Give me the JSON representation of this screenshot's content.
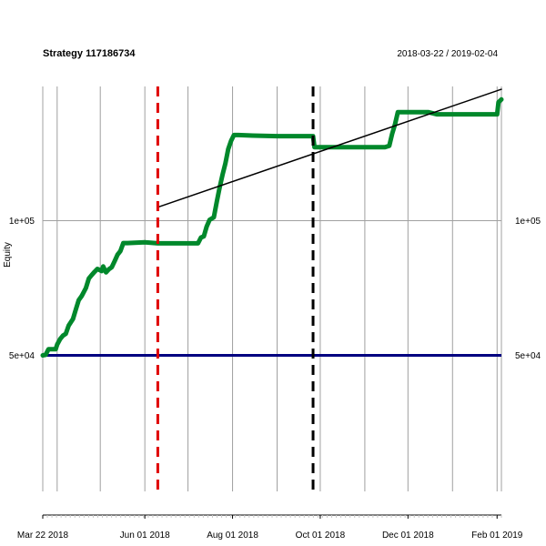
{
  "chart_data": {
    "type": "line",
    "title": "Strategy 117186734",
    "date_range": "2018-03-22 / 2019-02-04",
    "ylabel": "Equity",
    "x_start": "2018-03-22",
    "x_end": "2019-02-04",
    "ylim": [
      0,
      150000
    ],
    "y_ticks": [
      {
        "value": 50000,
        "label": "5e+04"
      },
      {
        "value": 100000,
        "label": "1e+05"
      }
    ],
    "x_ticks": [
      {
        "date": "2018-03-22",
        "label": "Mar 22 2018"
      },
      {
        "date": "2018-06-01",
        "label": "Jun 01 2018"
      },
      {
        "date": "2018-08-01",
        "label": "Aug 01 2018"
      },
      {
        "date": "2018-10-01",
        "label": "Oct 01 2018"
      },
      {
        "date": "2018-12-01",
        "label": "Dec 01 2018"
      },
      {
        "date": "2019-02-01",
        "label": "Feb 01 2019"
      }
    ],
    "grid_dates": [
      "2018-04-01",
      "2018-05-01",
      "2018-06-01",
      "2018-07-01",
      "2018-08-01",
      "2018-09-01",
      "2018-10-01",
      "2018-11-01",
      "2018-12-01",
      "2019-01-01",
      "2019-02-01"
    ],
    "series": [
      {
        "role": "equity",
        "color": "#00882B",
        "points": [
          [
            "2018-03-22",
            50000
          ],
          [
            "2018-03-24",
            50200
          ],
          [
            "2018-03-26",
            52300
          ],
          [
            "2018-03-31",
            52300
          ],
          [
            "2018-04-01",
            54000
          ],
          [
            "2018-04-03",
            56000
          ],
          [
            "2018-04-05",
            57300
          ],
          [
            "2018-04-07",
            58000
          ],
          [
            "2018-04-09",
            61000
          ],
          [
            "2018-04-12",
            63500
          ],
          [
            "2018-04-14",
            67000
          ],
          [
            "2018-04-16",
            70500
          ],
          [
            "2018-04-18",
            72000
          ],
          [
            "2018-04-21",
            75000
          ],
          [
            "2018-04-23",
            78500
          ],
          [
            "2018-04-25",
            79800
          ],
          [
            "2018-04-27",
            81000
          ],
          [
            "2018-04-29",
            82100
          ],
          [
            "2018-05-02",
            81300
          ],
          [
            "2018-05-03",
            83000
          ],
          [
            "2018-05-05",
            80800
          ],
          [
            "2018-05-07",
            82000
          ],
          [
            "2018-05-09",
            82700
          ],
          [
            "2018-05-11",
            85000
          ],
          [
            "2018-05-13",
            87400
          ],
          [
            "2018-05-15",
            88700
          ],
          [
            "2018-05-17",
            91700
          ],
          [
            "2018-05-20",
            91700
          ],
          [
            "2018-05-25",
            91800
          ],
          [
            "2018-06-01",
            92000
          ],
          [
            "2018-06-10",
            91600
          ],
          [
            "2018-06-20",
            91600
          ],
          [
            "2018-07-01",
            91600
          ],
          [
            "2018-07-08",
            91600
          ],
          [
            "2018-07-10",
            93700
          ],
          [
            "2018-07-12",
            94200
          ],
          [
            "2018-07-14",
            97800
          ],
          [
            "2018-07-16",
            100300
          ],
          [
            "2018-07-19",
            101300
          ],
          [
            "2018-07-21",
            107000
          ],
          [
            "2018-07-23",
            112200
          ],
          [
            "2018-07-25",
            117000
          ],
          [
            "2018-07-27",
            121300
          ],
          [
            "2018-07-29",
            126600
          ],
          [
            "2018-07-31",
            129700
          ],
          [
            "2018-08-02",
            131800
          ],
          [
            "2018-08-05",
            131800
          ],
          [
            "2018-08-15",
            131600
          ],
          [
            "2018-09-01",
            131400
          ],
          [
            "2018-09-20",
            131400
          ],
          [
            "2018-09-26",
            131400
          ],
          [
            "2018-09-27",
            127300
          ],
          [
            "2018-10-05",
            127300
          ],
          [
            "2018-11-01",
            127300
          ],
          [
            "2018-11-15",
            127300
          ],
          [
            "2018-11-18",
            127800
          ],
          [
            "2018-11-20",
            132200
          ],
          [
            "2018-11-22",
            135800
          ],
          [
            "2018-11-24",
            140300
          ],
          [
            "2018-12-05",
            140300
          ],
          [
            "2018-12-15",
            140300
          ],
          [
            "2018-12-21",
            139500
          ],
          [
            "2019-01-15",
            139500
          ],
          [
            "2019-01-30",
            139500
          ],
          [
            "2019-02-01",
            139500
          ],
          [
            "2019-02-02",
            144000
          ],
          [
            "2019-02-04",
            145000
          ]
        ]
      },
      {
        "role": "trend",
        "color": "#000000",
        "points": [
          [
            "2018-06-10",
            105000
          ],
          [
            "2019-02-04",
            148800
          ]
        ]
      }
    ],
    "hlines": [
      {
        "value": 50000,
        "color": "#000080"
      }
    ],
    "vlines": [
      {
        "date": "2018-06-10",
        "color": "#E00000"
      },
      {
        "date": "2018-09-26",
        "color": "#000000"
      }
    ]
  }
}
